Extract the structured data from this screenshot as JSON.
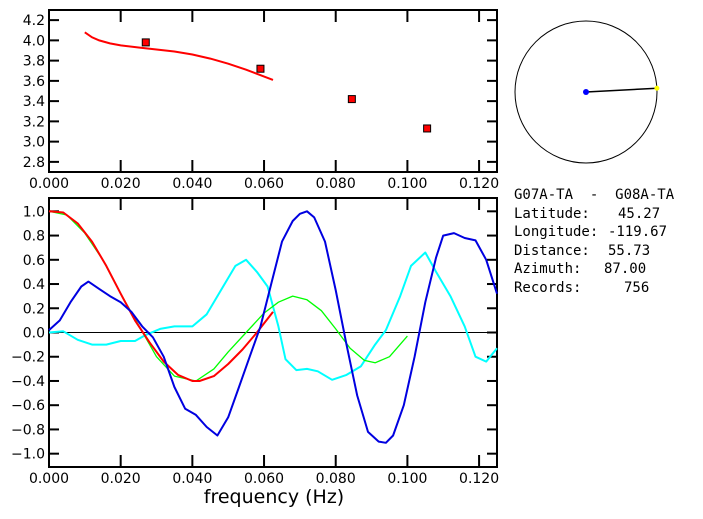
{
  "chart_data": [
    {
      "type": "scatter",
      "xlim": [
        0,
        0.125
      ],
      "ylim": [
        2.7,
        4.3
      ],
      "xticks": [
        "0.000",
        "0.020",
        "0.040",
        "0.060",
        "0.080",
        "0.100",
        "0.120"
      ],
      "yticks": [
        "2.8",
        "3.0",
        "3.2",
        "3.4",
        "3.6",
        "3.8",
        "4.0",
        "4.2"
      ],
      "points": {
        "x": [
          0.027,
          0.059,
          0.0845,
          0.1055
        ],
        "y": [
          3.98,
          3.72,
          3.42,
          3.13
        ],
        "color": "#ff0000"
      },
      "curve": {
        "x": [
          0.01,
          0.012,
          0.014,
          0.017,
          0.02,
          0.025,
          0.03,
          0.035,
          0.04,
          0.045,
          0.05,
          0.055,
          0.058,
          0.0625
        ],
        "y": [
          4.08,
          4.03,
          4.0,
          3.97,
          3.95,
          3.93,
          3.91,
          3.89,
          3.86,
          3.82,
          3.77,
          3.71,
          3.67,
          3.61
        ],
        "color": "#ff0000"
      }
    },
    {
      "type": "line",
      "xlabel": "frequency (Hz)",
      "xlim": [
        0,
        0.125
      ],
      "ylim": [
        -1.11,
        1.11
      ],
      "xticks": [
        "0.000",
        "0.020",
        "0.040",
        "0.060",
        "0.080",
        "0.100",
        "0.120"
      ],
      "yticks": [
        "-1.0",
        "-0.8",
        "-0.6",
        "-0.4",
        "-0.2",
        "0.0",
        "0.2",
        "0.4",
        "0.6",
        "0.8",
        "1.0"
      ],
      "zero_line": true,
      "series": [
        {
          "color": "#00ffff",
          "x": [
            0,
            0.004,
            0.008,
            0.012,
            0.016,
            0.02,
            0.024,
            0.027,
            0.031,
            0.035,
            0.04,
            0.044,
            0.048,
            0.052,
            0.055,
            0.058,
            0.061,
            0.064,
            0.066,
            0.069,
            0.072,
            0.075,
            0.079,
            0.083,
            0.087,
            0.091,
            0.094,
            0.098,
            0.101,
            0.105,
            0.108,
            0.112,
            0.116,
            0.119,
            0.122,
            0.125
          ],
          "y": [
            0,
            0.01,
            -0.06,
            -0.1,
            -0.1,
            -0.07,
            -0.07,
            -0.02,
            0.03,
            0.05,
            0.05,
            0.15,
            0.35,
            0.55,
            0.6,
            0.5,
            0.38,
            0.05,
            -0.22,
            -0.31,
            -0.3,
            -0.32,
            -0.39,
            -0.35,
            -0.28,
            -0.1,
            0.02,
            0.3,
            0.55,
            0.66,
            0.5,
            0.3,
            0.05,
            -0.2,
            -0.24,
            -0.13
          ]
        },
        {
          "color": "#00ff00",
          "x": [
            0,
            0.005,
            0.01,
            0.015,
            0.02,
            0.025,
            0.03,
            0.035,
            0.041,
            0.046,
            0.05,
            0.055,
            0.06,
            0.064,
            0.068,
            0.072,
            0.076,
            0.08,
            0.084,
            0.088,
            0.091,
            0.095,
            0.1
          ],
          "y": [
            1.0,
            0.97,
            0.82,
            0.6,
            0.32,
            0.06,
            -0.2,
            -0.36,
            -0.4,
            -0.3,
            -0.16,
            0.0,
            0.16,
            0.25,
            0.3,
            0.27,
            0.18,
            0.03,
            -0.13,
            -0.23,
            -0.25,
            -0.2,
            -0.03
          ]
        },
        {
          "color": "#ff0000",
          "x": [
            0,
            0.004,
            0.008,
            0.012,
            0.016,
            0.02,
            0.024,
            0.028,
            0.032,
            0.036,
            0.04,
            0.042,
            0.046,
            0.05,
            0.054,
            0.058,
            0.0625
          ],
          "y": [
            1.0,
            0.99,
            0.9,
            0.75,
            0.55,
            0.32,
            0.1,
            -0.08,
            -0.24,
            -0.35,
            -0.4,
            -0.4,
            -0.36,
            -0.26,
            -0.14,
            0.0,
            0.17
          ]
        },
        {
          "color": "#0000e0",
          "x": [
            0,
            0.003,
            0.006,
            0.009,
            0.011,
            0.014,
            0.017,
            0.02,
            0.023,
            0.026,
            0.029,
            0.032,
            0.035,
            0.038,
            0.041,
            0.044,
            0.047,
            0.05,
            0.053,
            0.056,
            0.059,
            0.062,
            0.065,
            0.068,
            0.07,
            0.072,
            0.074,
            0.077,
            0.08,
            0.083,
            0.086,
            0.089,
            0.092,
            0.094,
            0.096,
            0.099,
            0.102,
            0.105,
            0.108,
            0.11,
            0.113,
            0.116,
            0.119,
            0.122,
            0.125
          ],
          "y": [
            0.02,
            0.1,
            0.25,
            0.38,
            0.42,
            0.36,
            0.3,
            0.25,
            0.17,
            0.05,
            -0.04,
            -0.2,
            -0.45,
            -0.63,
            -0.68,
            -0.78,
            -0.85,
            -0.7,
            -0.45,
            -0.2,
            0.05,
            0.4,
            0.75,
            0.92,
            0.98,
            1.0,
            0.95,
            0.75,
            0.35,
            -0.1,
            -0.52,
            -0.82,
            -0.9,
            -0.91,
            -0.85,
            -0.6,
            -0.2,
            0.25,
            0.62,
            0.8,
            0.82,
            0.78,
            0.76,
            0.6,
            0.32
          ]
        }
      ]
    }
  ],
  "map": {
    "azimuth": 87.0,
    "station_color": "#0000ff",
    "target_color": "#ffff00"
  },
  "info": {
    "title": "G07A-TA  -  G08A-TA",
    "rows": [
      {
        "label": "Latitude:",
        "value": "45.27"
      },
      {
        "label": "Longitude:",
        "value": "-119.67"
      },
      {
        "label": "Distance:",
        "value": "55.73"
      },
      {
        "label": "Azimuth:",
        "value": "87.00"
      },
      {
        "label": "Records:",
        "value": "756"
      }
    ]
  }
}
